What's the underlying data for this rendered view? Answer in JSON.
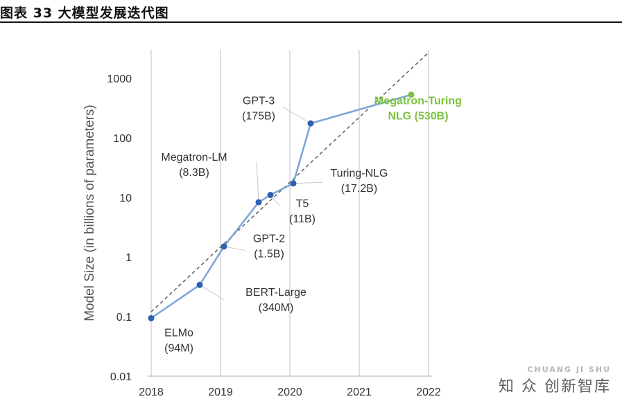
{
  "figure": {
    "title": "图表 33 大模型发展迭代图"
  },
  "watermark": {
    "latin": "CHUANG JI SHU",
    "chinese": "知 众 创新智库"
  },
  "colors": {
    "line": "#7ea7d8",
    "point": "#2f5fb0",
    "highlight": "#7cc242",
    "trend": "#666666",
    "axis": "#bfbfbf",
    "label": "#333333"
  },
  "chart_data": {
    "type": "line",
    "title": "",
    "xlabel": "",
    "ylabel": "Model Size (in billions of parameters)",
    "yscale": "log",
    "ylim": [
      0.01,
      3000
    ],
    "xlim": [
      2018,
      2022
    ],
    "xticks": [
      "2018",
      "2019",
      "2020",
      "2021",
      "2022"
    ],
    "yticks": [
      {
        "value": 0.01,
        "label": "0.01"
      },
      {
        "value": 0.1,
        "label": "0.1"
      },
      {
        "value": 1,
        "label": "1"
      },
      {
        "value": 10,
        "label": "10"
      },
      {
        "value": 100,
        "label": "100"
      },
      {
        "value": 1000,
        "label": "1000"
      }
    ],
    "trend_line": {
      "from": [
        2018,
        0.12
      ],
      "to": [
        2022,
        2700
      ]
    },
    "points": [
      {
        "name": "ELMo",
        "size": "(94M)",
        "x": 2018.0,
        "y": 0.094,
        "highlight": false,
        "lx": 2018.4,
        "ly": 0.042,
        "anchor": "middle",
        "leader": false
      },
      {
        "name": "BERT-Large",
        "size": "(340M)",
        "x": 2018.7,
        "y": 0.34,
        "highlight": false,
        "lx": 2019.8,
        "ly": 0.2,
        "anchor": "middle",
        "leader": true,
        "lead_from": [
          2019.05,
          0.19
        ]
      },
      {
        "name": "GPT-2",
        "size": "(1.5B)",
        "x": 2019.05,
        "y": 1.5,
        "highlight": false,
        "lx": 2019.7,
        "ly": 1.6,
        "anchor": "middle",
        "leader": true,
        "lead_from": [
          2019.35,
          1.3
        ]
      },
      {
        "name": "Megatron-LM",
        "size": "(8.3B)",
        "x": 2019.55,
        "y": 8.3,
        "highlight": false,
        "lx": 2018.62,
        "ly": 37,
        "anchor": "middle",
        "leader": true,
        "lead_from": [
          2019.52,
          40
        ]
      },
      {
        "name": "T5",
        "size": "(11B)",
        "x": 2019.72,
        "y": 11,
        "highlight": false,
        "lx": 2020.18,
        "ly": 6.2,
        "anchor": "middle",
        "leader": true,
        "lead_from": [
          2019.85,
          7.3
        ]
      },
      {
        "name": "Turing-NLG",
        "size": "(17.2B)",
        "x": 2020.05,
        "y": 17.2,
        "highlight": false,
        "lx": 2021.0,
        "ly": 20,
        "anchor": "middle",
        "leader": true,
        "lead_from": [
          2020.48,
          18
        ]
      },
      {
        "name": "GPT-3",
        "size": "(175B)",
        "x": 2020.3,
        "y": 175,
        "highlight": false,
        "lx": 2019.55,
        "ly": 330,
        "anchor": "middle",
        "leader": true,
        "lead_from": [
          2019.9,
          330
        ]
      },
      {
        "name": "Megatron-Turing",
        "size": "NLG (530B)",
        "x": 2021.75,
        "y": 530,
        "highlight": true,
        "lx": 2021.85,
        "ly": 330,
        "anchor": "middle",
        "leader": false
      }
    ]
  }
}
